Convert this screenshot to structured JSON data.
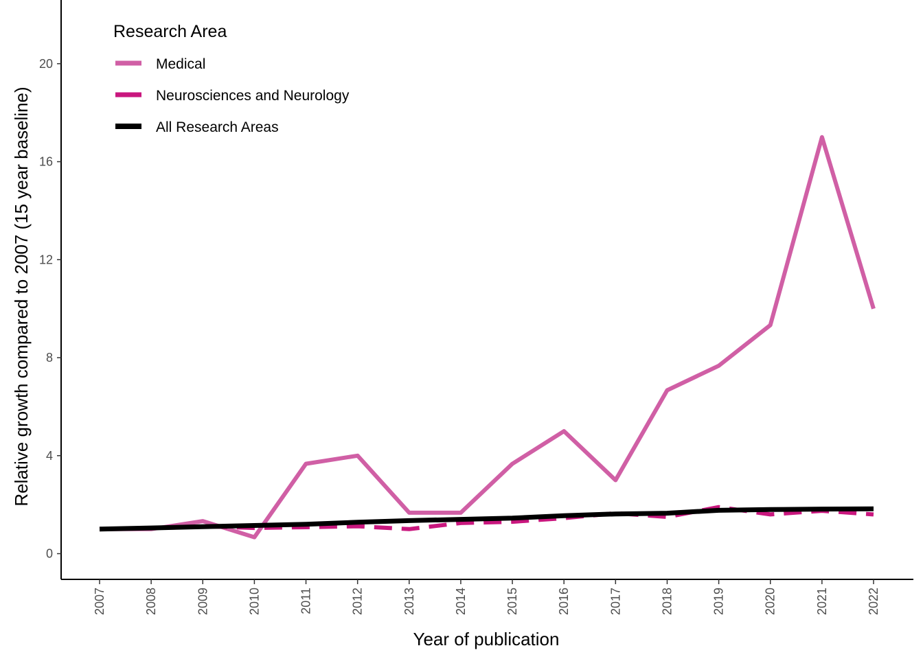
{
  "chart_data": {
    "type": "line",
    "xlabel": "Year of publication",
    "ylabel": "Relative growth compared to 2007 (15 year baseline)",
    "x": [
      2007,
      2008,
      2009,
      2010,
      2011,
      2012,
      2013,
      2014,
      2015,
      2016,
      2017,
      2018,
      2019,
      2020,
      2021,
      2022
    ],
    "xtick_labels": [
      "2007",
      "2008",
      "2009",
      "2010",
      "2011",
      "2012",
      "2013",
      "2014",
      "2015",
      "2016",
      "2017",
      "2018",
      "2019",
      "2020",
      "2021",
      "2022"
    ],
    "ylim": [
      -1.05,
      22.6
    ],
    "yticks": [
      0,
      4,
      8,
      12,
      16,
      20
    ],
    "ytick_labels": [
      "0",
      "4",
      "8",
      "12",
      "16",
      "20"
    ],
    "grid": false,
    "legend": {
      "title": "Research Area",
      "position": "top-left"
    },
    "series": [
      {
        "name": "Medical",
        "color": "#d05fa5",
        "dashed": false,
        "values": [
          1.0,
          1.0,
          1.33,
          0.67,
          3.67,
          4.0,
          1.67,
          1.67,
          3.67,
          5.0,
          3.0,
          6.67,
          7.67,
          9.33,
          17.0,
          10.0
        ]
      },
      {
        "name": "Neurosciences and Neurology",
        "color": "#c9177e",
        "dashed": true,
        "values": [
          1.0,
          1.05,
          1.12,
          1.05,
          1.08,
          1.12,
          1.0,
          1.25,
          1.3,
          1.45,
          1.65,
          1.5,
          1.9,
          1.6,
          1.75,
          1.6
        ]
      },
      {
        "name": "All Research Areas",
        "color": "#000000",
        "dashed": false,
        "values": [
          1.0,
          1.05,
          1.1,
          1.15,
          1.2,
          1.28,
          1.35,
          1.4,
          1.45,
          1.55,
          1.62,
          1.65,
          1.77,
          1.8,
          1.82,
          1.83
        ]
      }
    ]
  }
}
